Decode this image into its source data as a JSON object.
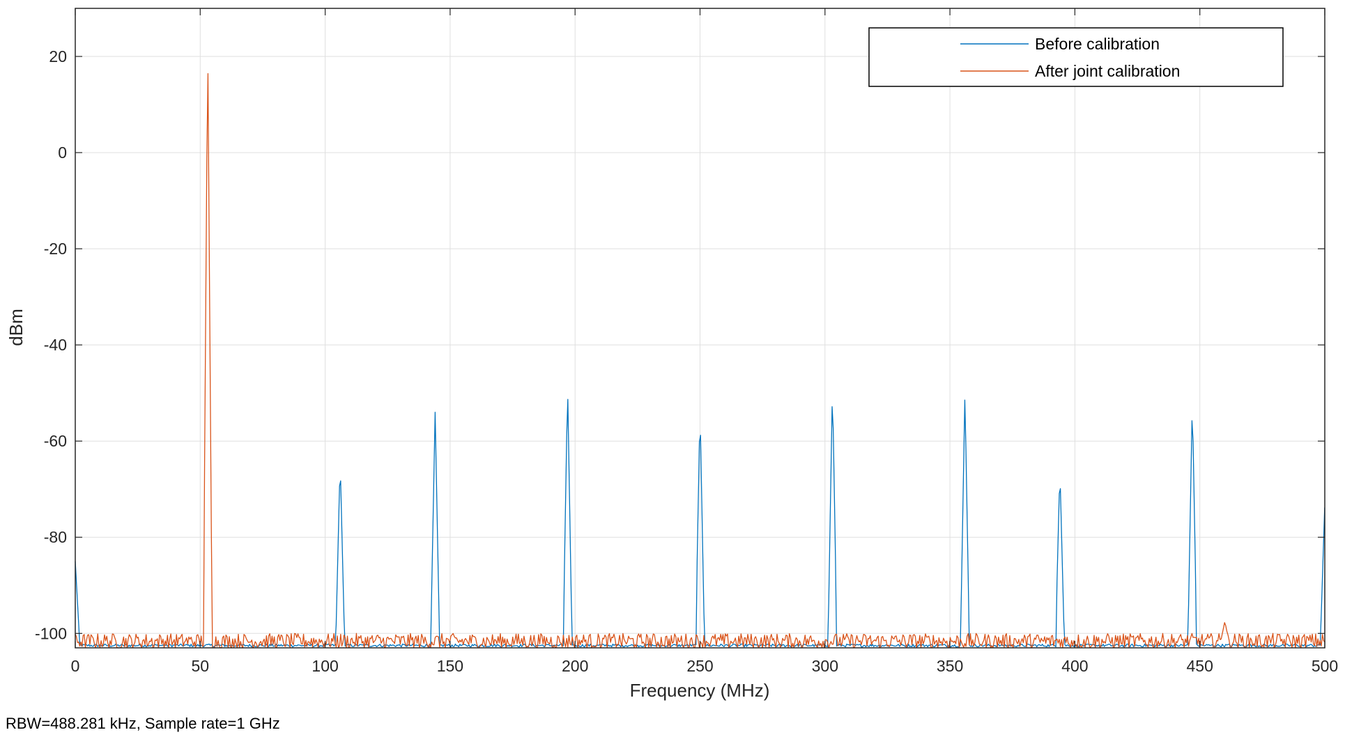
{
  "chart_data": {
    "type": "line",
    "title": "",
    "xlabel": "Frequency (MHz)",
    "ylabel": "dBm",
    "xlim": [
      0,
      500
    ],
    "ylim": [
      -103,
      30
    ],
    "xticks": [
      0,
      50,
      100,
      150,
      200,
      250,
      300,
      350,
      400,
      450,
      500
    ],
    "yticks": [
      -100,
      -80,
      -60,
      -40,
      -20,
      0,
      20
    ],
    "grid": true,
    "legend_position": "top-right",
    "footer": "RBW=488.281 kHz, Sample rate=1 GHz",
    "noise_floor_dbm": -102,
    "series": [
      {
        "name": "Before calibration",
        "color": "#0072BD",
        "peaks": [
          {
            "x": 0,
            "y": -85
          },
          {
            "x": 106,
            "y": -64
          },
          {
            "x": 144,
            "y": -54
          },
          {
            "x": 197,
            "y": -48.3
          },
          {
            "x": 250,
            "y": -53.3
          },
          {
            "x": 303,
            "y": -48.3
          },
          {
            "x": 356,
            "y": -50
          },
          {
            "x": 394,
            "y": -65.8
          },
          {
            "x": 447,
            "y": -51.5
          },
          {
            "x": 500,
            "y": -73
          }
        ]
      },
      {
        "name": "After joint calibration",
        "color": "#D95319",
        "peaks": [
          {
            "x": 53,
            "y": 23.5
          },
          {
            "x": 460,
            "y": -97.5
          }
        ]
      }
    ]
  }
}
